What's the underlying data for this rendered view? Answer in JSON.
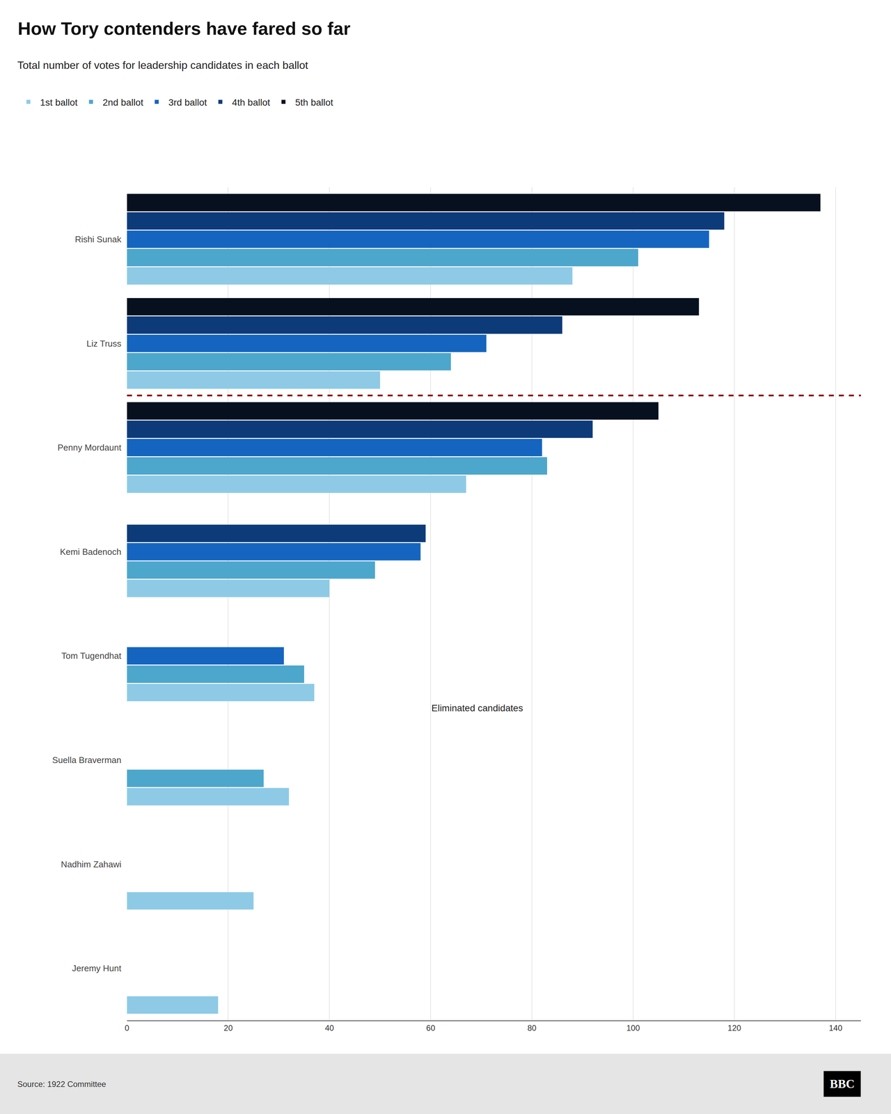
{
  "chart_data": {
    "type": "bar",
    "orientation": "horizontal",
    "title": "How Tory contenders have fared so far",
    "subtitle": "Total number of votes for leadership candidates in each ballot",
    "source": "Source: 1922 Committee",
    "logo": "BBC",
    "categories": [
      "Rishi Sunak",
      "Liz Truss",
      "Penny Mordaunt",
      "Kemi Badenoch",
      "Tom Tugendhat",
      "Suella Braverman",
      "Nadhim Zahawi",
      "Jeremy Hunt"
    ],
    "series": [
      {
        "name": "1st ballot",
        "color": "#8ecae6",
        "values": [
          88,
          50,
          67,
          40,
          37,
          32,
          25,
          18
        ]
      },
      {
        "name": "2nd ballot",
        "color": "#4da6cc",
        "values": [
          101,
          64,
          83,
          49,
          35,
          27,
          null,
          null
        ]
      },
      {
        "name": "3rd ballot",
        "color": "#1565c0",
        "values": [
          115,
          71,
          82,
          58,
          31,
          null,
          null,
          null
        ]
      },
      {
        "name": "4th ballot",
        "color": "#0d3b7a",
        "values": [
          118,
          86,
          92,
          59,
          null,
          null,
          null,
          null
        ]
      },
      {
        "name": "5th ballot",
        "color": "#07101f",
        "values": [
          137,
          113,
          105,
          null,
          null,
          null,
          null,
          null
        ]
      }
    ],
    "xlim": [
      0,
      145
    ],
    "xticks": [
      0,
      20,
      40,
      60,
      80,
      100,
      120,
      140
    ],
    "grid": true,
    "legend": "top left",
    "annotations": [
      {
        "text": "Eliminated candidates",
        "x": 60,
        "between": [
          "Tom Tugendhat",
          "Suella Braverman"
        ]
      }
    ],
    "separator": {
      "between": [
        "Liz Truss",
        "Penny Mordaunt"
      ],
      "color": "#8b0000",
      "line_style": "dashed"
    }
  }
}
